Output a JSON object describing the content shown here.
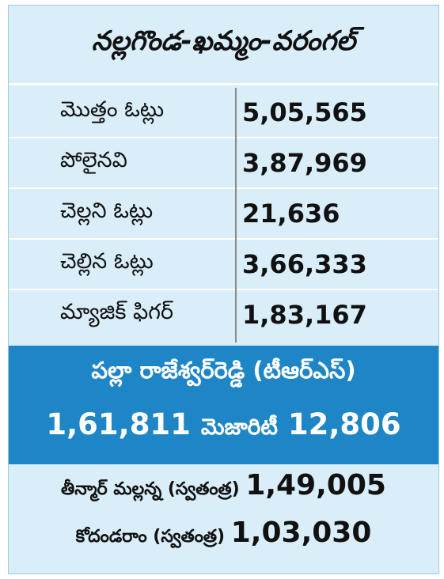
{
  "title": "నల్లగొండ-ఖమ్మం-వరంగల్",
  "table": {
    "rows": [
      [
        "మొత్తం ఓట్లు",
        "5,05,565"
      ],
      [
        "పోలైనవి",
        "3,87,969"
      ],
      [
        "చెల్లని ఓట్లు",
        "21,636"
      ],
      [
        "చెల్లిన ఓట్లు",
        "3,66,333"
      ],
      [
        "మ్యాజిక్ ఫిగర్",
        "1,83,167"
      ]
    ]
  },
  "winner": {
    "name": "పల్లా రాజేశ్వర్‌రెడ్డి (టీఆర్‌ఎస్‌)",
    "votes": "1,61,811",
    "majority_label": "మెజారిటీ",
    "majority": "12,806"
  },
  "others": [
    {
      "name": "తీన్మార్ మల్లన్న (స్వతంత్ర)",
      "votes": "1,49,005"
    },
    {
      "name": "కోదండరాం (స్వతంత్ర)",
      "votes": "1,03,030"
    }
  ]
}
